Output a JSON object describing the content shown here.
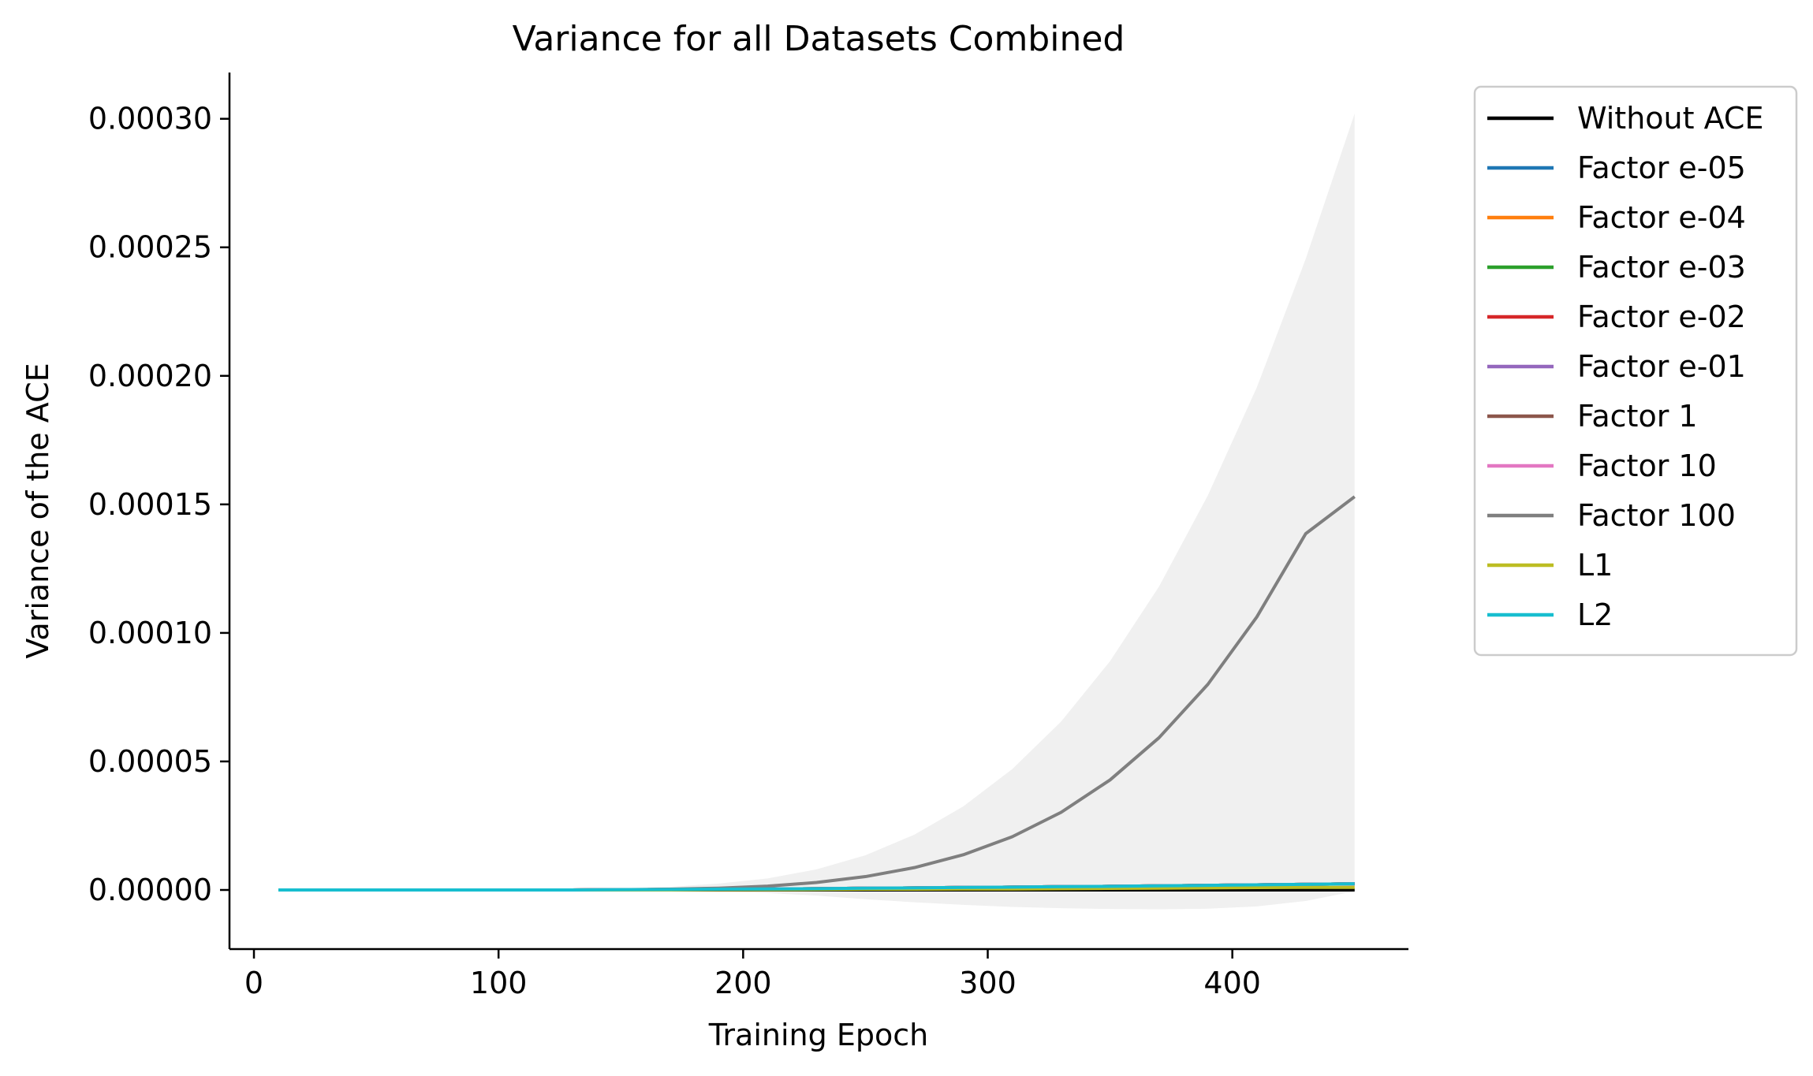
{
  "chart_data": {
    "type": "line",
    "title": "Variance for all Datasets Combined",
    "xlabel": "Training Epoch",
    "ylabel": "Variance of the ACE",
    "xlim": [
      -10,
      472
    ],
    "ylim": [
      -2.3e-05,
      0.000318
    ],
    "xticks": [
      0,
      100,
      200,
      300,
      400
    ],
    "xtick_labels": [
      "0",
      "100",
      "200",
      "300",
      "400"
    ],
    "yticks": [
      0.0,
      5e-05,
      0.0001,
      0.00015,
      0.0002,
      0.00025,
      0.0003
    ],
    "ytick_labels": [
      "0.00000",
      "0.00005",
      "0.00010",
      "0.00015",
      "0.00020",
      "0.00025",
      "0.00030"
    ],
    "grid": false,
    "legend_position": "outside-upper-right",
    "x": [
      10,
      30,
      50,
      70,
      90,
      110,
      130,
      150,
      170,
      190,
      210,
      230,
      250,
      270,
      290,
      310,
      330,
      350,
      370,
      390,
      410,
      430,
      450
    ],
    "series": [
      {
        "name": "Without ACE",
        "color": "#000000",
        "values": [
          0,
          0,
          0,
          0,
          0,
          0,
          0,
          0,
          0,
          0,
          0,
          0,
          0,
          0,
          0,
          0,
          0,
          0,
          0,
          0,
          0,
          0,
          0
        ]
      },
      {
        "name": "Factor e-05",
        "color": "#1f77b4",
        "values": [
          0,
          0,
          0,
          0,
          0,
          0,
          0,
          1e-07,
          2e-07,
          3e-07,
          4e-07,
          5e-07,
          7e-07,
          8e-07,
          1e-06,
          1.1e-06,
          1.3e-06,
          1.4e-06,
          1.6e-06,
          1.8e-06,
          2e-06,
          2.2e-06,
          2.4e-06
        ]
      },
      {
        "name": "Factor e-04",
        "color": "#ff7f0e",
        "values": [
          0,
          0,
          0,
          0,
          0,
          0,
          0,
          1e-07,
          2e-07,
          3e-07,
          4e-07,
          5e-07,
          7e-07,
          8e-07,
          1e-06,
          1.1e-06,
          1.3e-06,
          1.4e-06,
          1.6e-06,
          1.8e-06,
          2e-06,
          2.2e-06,
          2.4e-06
        ]
      },
      {
        "name": "Factor e-03",
        "color": "#2ca02c",
        "values": [
          0,
          0,
          0,
          0,
          0,
          0,
          0,
          1e-07,
          2e-07,
          3e-07,
          4e-07,
          5e-07,
          7e-07,
          8e-07,
          1e-06,
          1.1e-06,
          1.3e-06,
          1.4e-06,
          1.6e-06,
          1.8e-06,
          2e-06,
          2.2e-06,
          2.4e-06
        ]
      },
      {
        "name": "Factor e-02",
        "color": "#d62728",
        "values": [
          0,
          0,
          0,
          0,
          0,
          0,
          0,
          1e-07,
          2e-07,
          3e-07,
          4e-07,
          5e-07,
          7e-07,
          8e-07,
          1e-06,
          1.1e-06,
          1.3e-06,
          1.4e-06,
          1.6e-06,
          1.8e-06,
          2e-06,
          2.2e-06,
          2.4e-06
        ]
      },
      {
        "name": "Factor e-01",
        "color": "#9467bd",
        "values": [
          0,
          0,
          0,
          0,
          0,
          0,
          0,
          1e-07,
          2e-07,
          3e-07,
          4e-07,
          5e-07,
          7e-07,
          8e-07,
          1e-06,
          1.1e-06,
          1.3e-06,
          1.4e-06,
          1.6e-06,
          1.8e-06,
          2e-06,
          2.2e-06,
          2.4e-06
        ]
      },
      {
        "name": "Factor 1",
        "color": "#8c564b",
        "values": [
          0,
          0,
          0,
          0,
          0,
          0,
          0,
          1e-07,
          2e-07,
          3e-07,
          4e-07,
          5e-07,
          7e-07,
          8e-07,
          1e-06,
          1.1e-06,
          1.3e-06,
          1.4e-06,
          1.6e-06,
          1.8e-06,
          2e-06,
          2.2e-06,
          2.4e-06
        ]
      },
      {
        "name": "Factor 10",
        "color": "#e377c2",
        "values": [
          0,
          0,
          0,
          0,
          0,
          0,
          0,
          1e-07,
          2e-07,
          3e-07,
          4e-07,
          5e-07,
          7e-07,
          8e-07,
          1e-06,
          1.1e-06,
          1.3e-06,
          1.4e-06,
          1.6e-06,
          1.8e-06,
          2e-06,
          2.2e-06,
          2.4e-06
        ]
      },
      {
        "name": "Factor 100",
        "color": "#7f7f7f",
        "values": [
          0,
          0,
          0,
          0,
          0,
          0,
          0,
          1e-07,
          3e-07,
          7e-07,
          1.5e-06,
          2.9e-06,
          5.2e-06,
          8.7e-06,
          1.37e-05,
          2.07e-05,
          3.02e-05,
          4.28e-05,
          5.92e-05,
          8e-05,
          0.0001062,
          0.0001386,
          0.000153
        ]
      },
      {
        "name": "L1",
        "color": "#bcbd22",
        "values": [
          0,
          0,
          0,
          0,
          0,
          0,
          0,
          0,
          0,
          1e-07,
          1e-07,
          2e-07,
          3e-07,
          3e-07,
          4e-07,
          4e-07,
          5e-07,
          6e-07,
          7e-07,
          8e-07,
          9e-07,
          1e-06,
          1e-06
        ]
      },
      {
        "name": "L2",
        "color": "#17becf",
        "values": [
          0,
          0,
          0,
          0,
          0,
          0,
          0,
          1e-07,
          2e-07,
          3e-07,
          4e-07,
          5e-07,
          7e-07,
          8e-07,
          1e-06,
          1.1e-06,
          1.3e-06,
          1.4e-06,
          1.6e-06,
          1.8e-06,
          2e-06,
          2.2e-06,
          2.4e-06
        ]
      }
    ],
    "band": {
      "series": "Factor 100",
      "color": "#f0f0f0",
      "x": [
        10,
        30,
        50,
        70,
        90,
        110,
        130,
        150,
        170,
        190,
        210,
        230,
        250,
        270,
        290,
        310,
        330,
        350,
        370,
        390,
        410,
        430,
        450
      ],
      "upper": [
        0,
        0,
        0,
        0,
        0,
        0,
        0,
        5e-07,
        1.2e-06,
        2.5e-06,
        4.5e-06,
        8e-06,
        1.35e-05,
        2.15e-05,
        3.25e-05,
        4.7e-05,
        6.55e-05,
        8.9e-05,
        0.000118,
        0.0001535,
        0.0001955,
        0.0002455,
        0.000302
      ],
      "lower": [
        0,
        0,
        0,
        0,
        0,
        0,
        0,
        0,
        -2e-07,
        -5e-07,
        -1.2e-06,
        -2.2e-06,
        -3.6e-06,
        -4.8e-06,
        -5.8e-06,
        -6.6e-06,
        -7.1e-06,
        -7.4e-06,
        -7.5e-06,
        -7.3e-06,
        -6.4e-06,
        -4.3e-06,
        -5e-07
      ]
    }
  }
}
